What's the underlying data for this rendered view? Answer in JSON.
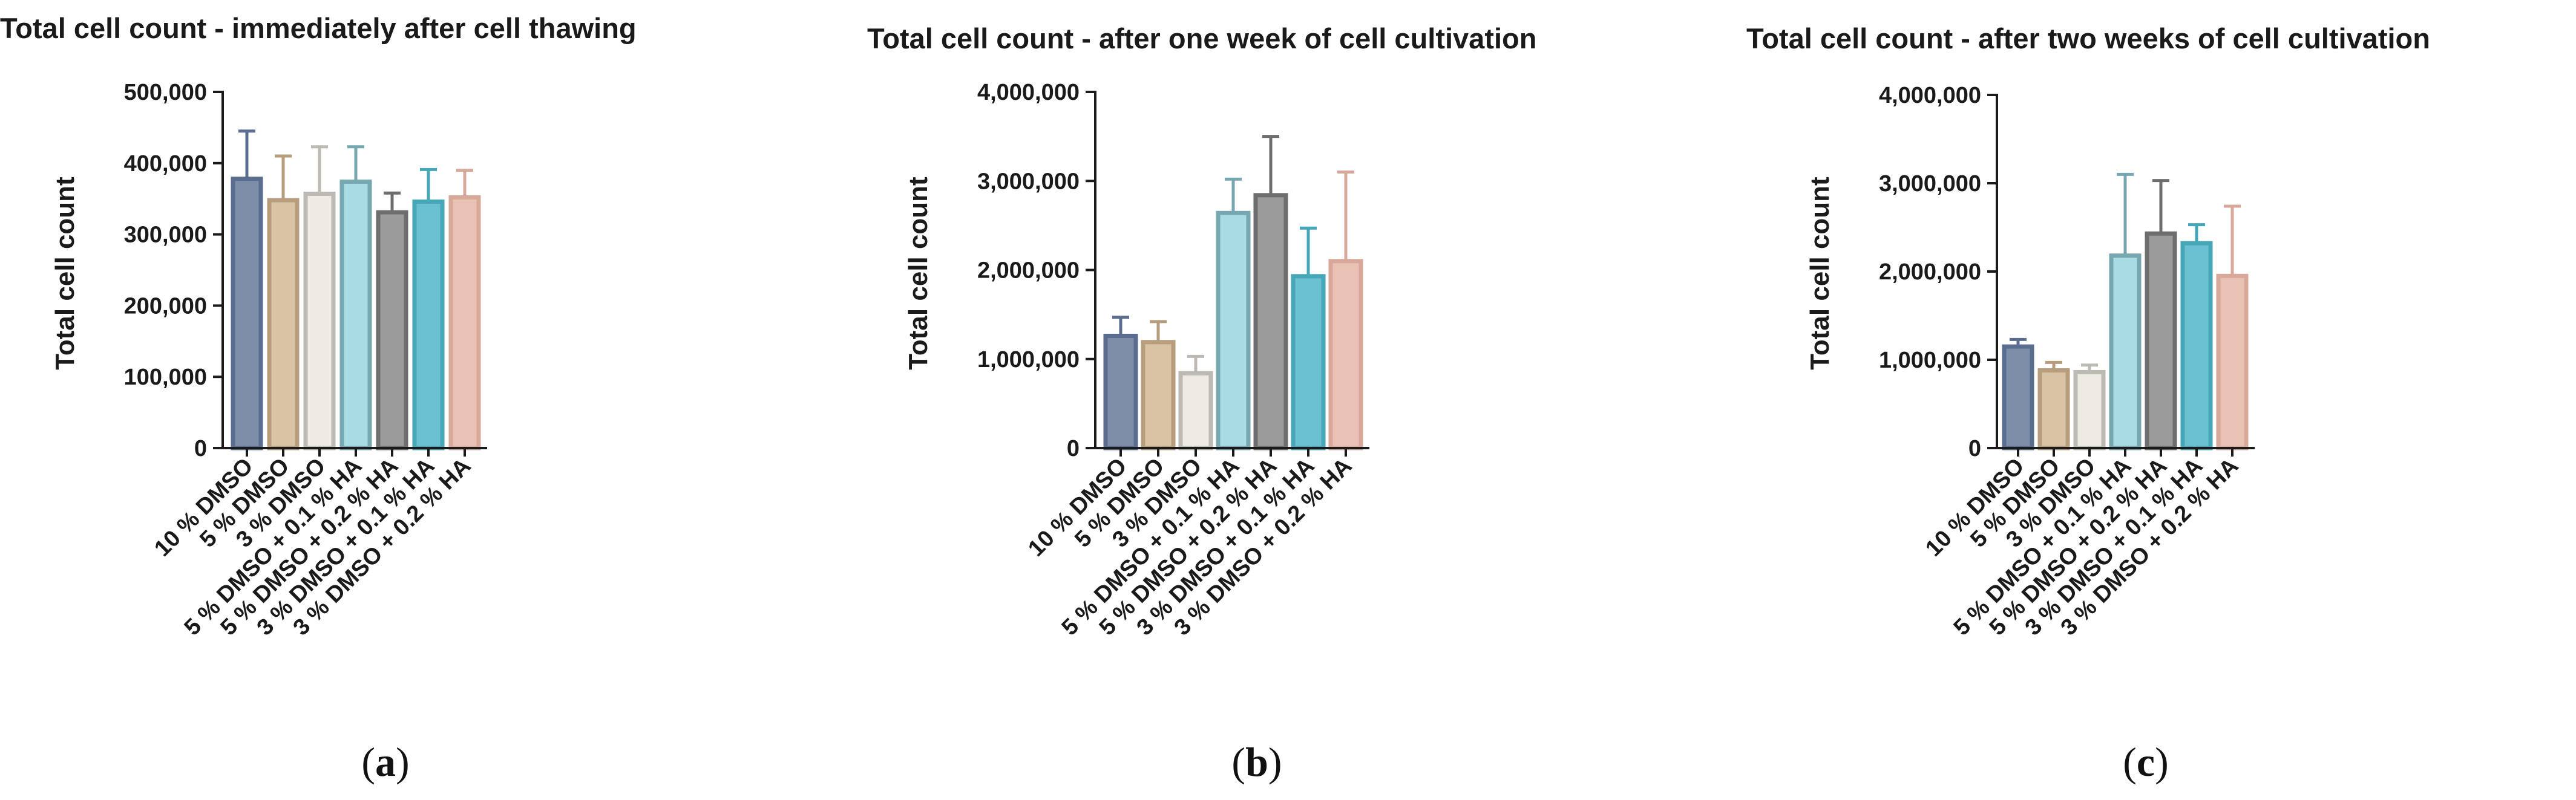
{
  "chart_data": [
    {
      "type": "bar",
      "panel": "a",
      "title": "Total cell count - immediately after cell thawing",
      "xlabel": "",
      "ylabel": "Total cell count",
      "ylim": [
        0,
        500000
      ],
      "yticks": [
        0,
        100000,
        200000,
        300000,
        400000,
        500000
      ],
      "ytick_labels": [
        "0",
        "100,000",
        "200,000",
        "300,000",
        "400,000",
        "500,000"
      ],
      "categories": [
        "10 % DMSO",
        "5 % DMSO",
        "3 % DMSO",
        "5 % DMSO + 0.1 % HA",
        "5 % DMSO + 0.2 % HA",
        "3 % DMSO + 0.1 % HA",
        "3 % DMSO + 0.2 % HA"
      ],
      "values": [
        378000,
        348000,
        357000,
        374000,
        331000,
        346000,
        352000
      ],
      "errors": [
        67000,
        62000,
        66000,
        49000,
        27000,
        45000,
        38000
      ]
    },
    {
      "type": "bar",
      "panel": "b",
      "title": "Total cell count - after one week of cell cultivation",
      "xlabel": "",
      "ylabel": "Total cell count",
      "ylim": [
        0,
        4000000
      ],
      "yticks": [
        0,
        1000000,
        2000000,
        3000000,
        4000000
      ],
      "ytick_labels": [
        "0",
        "1,000,000",
        "2,000,000",
        "3,000,000",
        "4,000,000"
      ],
      "categories": [
        "10 % DMSO",
        "5 % DMSO",
        "3 % DMSO",
        "5 % DMSO + 0.1 % HA",
        "5 % DMSO + 0.2 % HA",
        "3 % DMSO + 0.1 % HA",
        "3 % DMSO + 0.2 % HA"
      ],
      "values": [
        1260000,
        1190000,
        840000,
        2640000,
        2840000,
        1930000,
        2100000
      ],
      "errors": [
        210000,
        230000,
        190000,
        380000,
        660000,
        540000,
        1000000
      ]
    },
    {
      "type": "bar",
      "panel": "c",
      "title": "Total cell count - after two weeks of cell cultivation",
      "xlabel": "",
      "ylabel": "Total cell count",
      "ylim": [
        0,
        4000000
      ],
      "yticks": [
        0,
        1000000,
        2000000,
        3000000,
        4000000
      ],
      "ytick_labels": [
        "0",
        "1,000,000",
        "2,000,000",
        "3,000,000",
        "4,000,000"
      ],
      "categories": [
        "10 % DMSO",
        "5 % DMSO",
        "3 % DMSO",
        "5 % DMSO + 0.1 % HA",
        "5 % DMSO + 0.2 % HA",
        "3 % DMSO + 0.1 % HA",
        "3 % DMSO + 0.2 % HA"
      ],
      "values": [
        1150000,
        880000,
        860000,
        2180000,
        2430000,
        2320000,
        1950000
      ],
      "errors": [
        80000,
        90000,
        80000,
        920000,
        600000,
        210000,
        790000
      ]
    }
  ],
  "colors": {
    "fills": [
      "#7e8ea8",
      "#d8c3a5",
      "#eeebe4",
      "#a9dbe3",
      "#9b9b9b",
      "#6cc1d0",
      "#e9c2b5"
    ],
    "strokes": [
      "#5a6d8e",
      "#b79d7c",
      "#bdbab3",
      "#77a7b1",
      "#6e6e6e",
      "#46a7b8",
      "#d8a99a"
    ],
    "axis": "#1a1a1a"
  },
  "panel_labels": [
    {
      "open": "(",
      "letter": "a",
      "close": ")"
    },
    {
      "open": "(",
      "letter": "b",
      "close": ")"
    },
    {
      "open": "(",
      "letter": "c",
      "close": ")"
    }
  ]
}
